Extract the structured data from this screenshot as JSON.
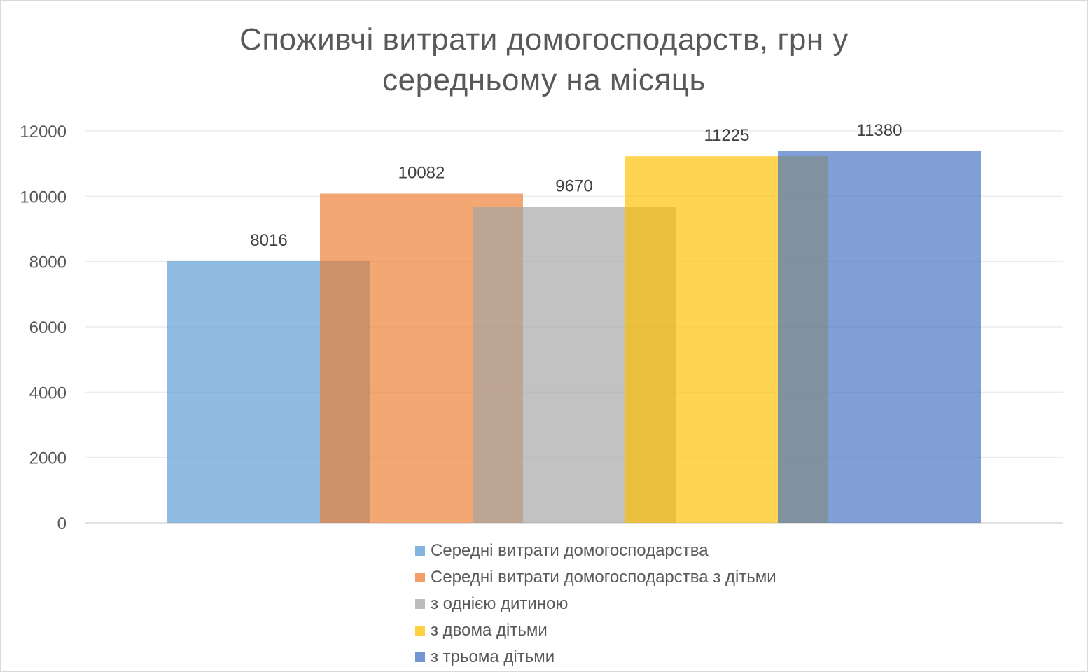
{
  "chart_data": {
    "type": "bar",
    "title": "Споживчі витрати домогосподарств, грн у середньому на місяць",
    "title_lines": [
      "Споживчі витрати домогосподарств, грн у",
      "середньому на місяць"
    ],
    "xlabel": "",
    "ylabel": "",
    "ylim": [
      0,
      12000
    ],
    "yticks": [
      0,
      2000,
      4000,
      6000,
      8000,
      10000,
      12000
    ],
    "grid": true,
    "legend_position": "bottom",
    "overlapping_bars": true,
    "series": [
      {
        "name": "Середні витрати домогосподарства",
        "value": 8016,
        "label": "8016",
        "color": "#5B9BD5"
      },
      {
        "name": "Середні витрати домогосподарства з дітьми",
        "value": 10082,
        "label": "10082",
        "color": "#ED7D31"
      },
      {
        "name": "з однією дитиною",
        "value": 9670,
        "label": "9670",
        "color": "#A5A5A5"
      },
      {
        "name": "з двома дітьми",
        "value": 11225,
        "label": "11225",
        "color": "#FFC000"
      },
      {
        "name": "з трьома дітьми",
        "value": 11380,
        "label": "11380",
        "color": "#4472C4"
      }
    ]
  }
}
